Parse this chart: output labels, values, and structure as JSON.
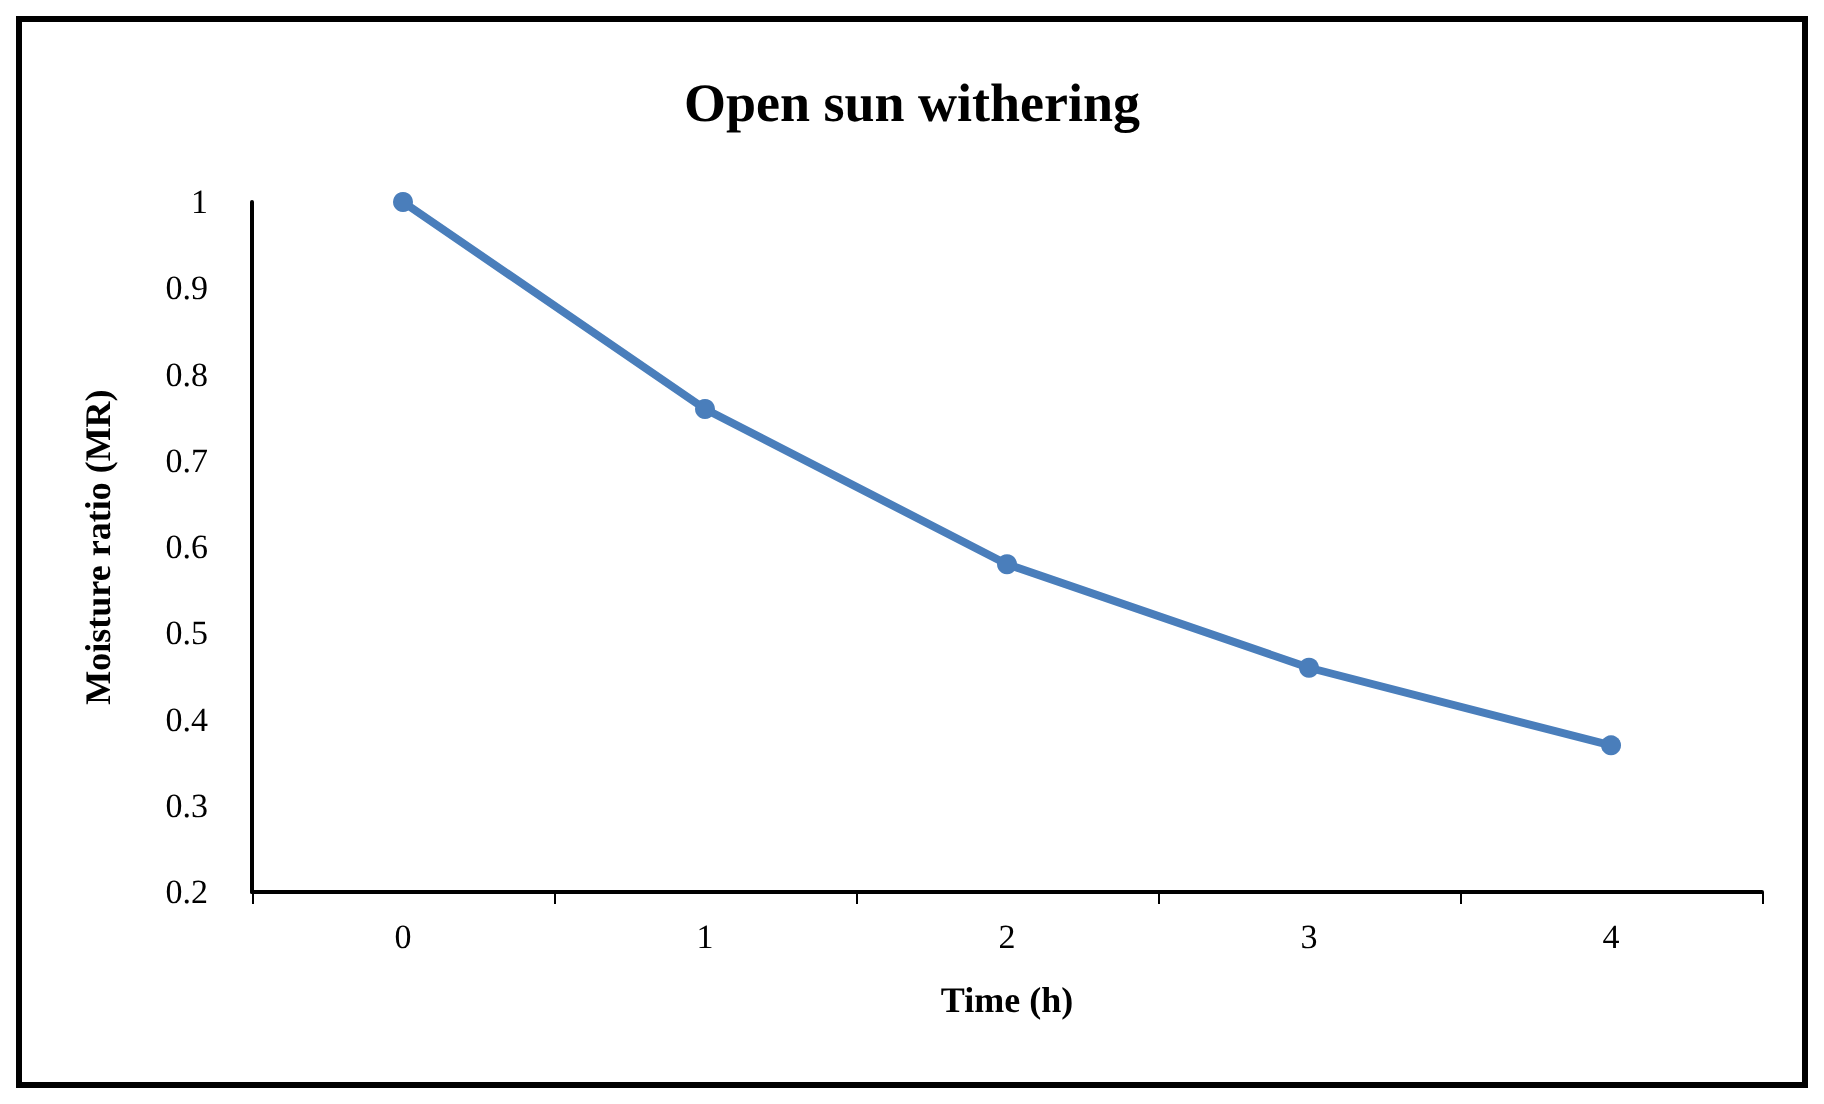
{
  "chart_data": {
    "type": "line",
    "title": "Open sun withering",
    "xlabel": "Time (h)",
    "ylabel": "Moisture ratio (MR)",
    "categories": [
      "0",
      "1",
      "2",
      "3",
      "4"
    ],
    "series": [
      {
        "color": "#4a7ebb",
        "values": [
          1.0,
          0.76,
          0.58,
          0.46,
          0.37
        ]
      }
    ],
    "ylim": [
      0.2,
      1
    ],
    "yticks": [
      0.2,
      0.3,
      0.4,
      0.5,
      0.6,
      0.7,
      0.8,
      0.9,
      1
    ],
    "grid": false,
    "marker": "circle",
    "line_style": "solid"
  }
}
